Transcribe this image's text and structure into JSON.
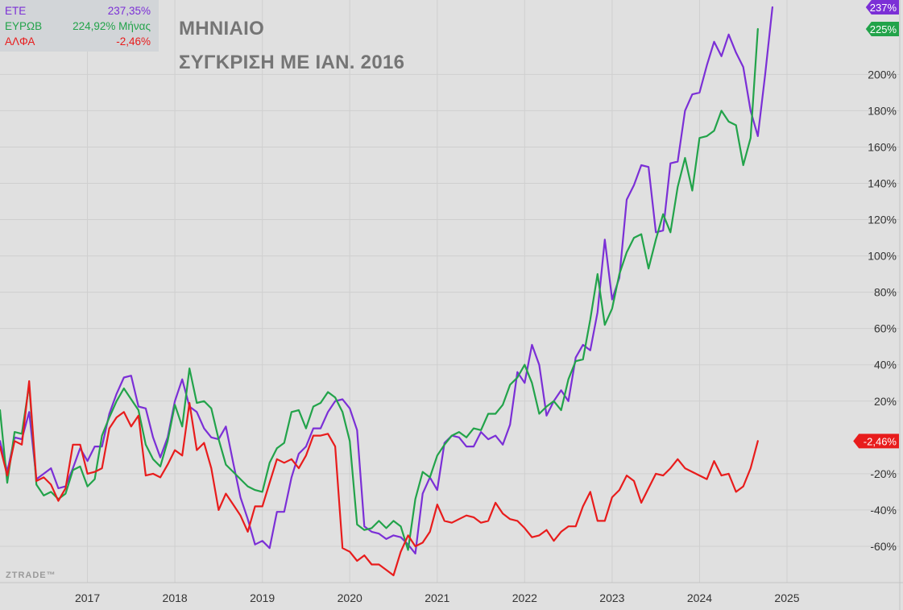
{
  "legend": {
    "items": [
      {
        "name": "ΕΤΕ",
        "value": "237,35%",
        "color": "#7b2fd6"
      },
      {
        "name": "ΕΥΡΩΒ",
        "value": "224,92% Μήνας",
        "color": "#22a34a"
      },
      {
        "name": "ΑΛΦΑ",
        "value": "-2,46%",
        "color": "#e81c1c"
      }
    ]
  },
  "title_line1": "ΜΗΝΙΑΙΟ",
  "title_line2": "ΣΥΓΚΡΙΣΗ ΜΕ ΙΑΝ. 2016",
  "watermark": "ZTRADE™",
  "chart_data": {
    "type": "line",
    "title": "ΜΗΝΙΑΙΟ ΣΥΓΚΡΙΣΗ ΜΕ ΙΑΝ. 2016",
    "x_start": "2016-01",
    "x_end": "2025-01",
    "x_axis_end": "2026-02",
    "xticks": [
      "2017",
      "2018",
      "2019",
      "2020",
      "2021",
      "2022",
      "2023",
      "2024",
      "2025"
    ],
    "yticks": [
      -60,
      -40,
      -20,
      20,
      40,
      60,
      80,
      100,
      120,
      140,
      160,
      180,
      200
    ],
    "ytick_labels": [
      "-60%",
      "-40%",
      "-20%",
      "20%",
      "40%",
      "60%",
      "80%",
      "100%",
      "120%",
      "140%",
      "160%",
      "180%",
      "200%"
    ],
    "ylim": [
      -80,
      241
    ],
    "grid": true,
    "series": [
      {
        "name": "ΕΤΕ",
        "color": "#7b2fd6",
        "badge": "237%",
        "values": [
          -2,
          -19,
          0,
          -1,
          14,
          -23,
          -20,
          -17,
          -28,
          -27,
          -17,
          -6,
          -13,
          -5,
          -5,
          13,
          24,
          33,
          34,
          17,
          16,
          0,
          -11,
          0,
          20,
          32,
          17,
          14,
          5,
          0,
          -1,
          6,
          -14,
          -33,
          -45,
          -59,
          -57,
          -61,
          -41,
          -41,
          -22,
          -9,
          -5,
          5,
          5,
          14,
          20,
          21,
          16,
          4,
          -49,
          -52,
          -53,
          -56,
          -54,
          -55,
          -59,
          -64,
          -31,
          -22,
          -29,
          -3,
          1,
          0,
          -5,
          -5,
          3,
          -1,
          1,
          -4,
          7,
          36,
          30,
          51,
          40,
          12,
          20,
          26,
          20,
          44,
          51,
          48,
          69,
          109,
          76,
          88,
          131,
          139,
          150,
          149,
          113,
          114,
          151,
          152,
          180,
          189,
          190,
          205,
          218,
          210,
          222,
          212,
          204,
          180,
          166,
          200,
          237
        ]
      },
      {
        "name": "ΕΥΡΩΒ",
        "color": "#22a34a",
        "badge": "225%",
        "values": [
          15,
          -25,
          3,
          2,
          29,
          -26,
          -32,
          -30,
          -34,
          -31,
          -18,
          -16,
          -27,
          -23,
          1,
          11,
          20,
          27,
          21,
          15,
          -4,
          -12,
          -16,
          -2,
          18,
          6,
          38,
          19,
          20,
          16,
          -1,
          -15,
          -19,
          -23,
          -27,
          -29,
          -30,
          -14,
          -6,
          -3,
          14,
          15,
          5,
          17,
          19,
          25,
          22,
          14,
          -2,
          -48,
          -51,
          -50,
          -46,
          -50,
          -46,
          -49,
          -62,
          -34,
          -19,
          -22,
          -10,
          -4,
          1,
          3,
          0,
          5,
          4,
          13,
          13,
          18,
          29,
          33,
          40,
          30,
          13,
          17,
          20,
          15,
          32,
          42,
          43,
          65,
          90,
          62,
          71,
          90,
          102,
          110,
          112,
          93,
          109,
          123,
          113,
          138,
          154,
          136,
          165,
          166,
          169,
          180,
          174,
          172,
          150,
          165,
          225
        ]
      },
      {
        "name": "ΑΛΦΑ",
        "color": "#e81c1c",
        "badge": "-2,46%",
        "values": [
          -5,
          -21,
          -2,
          -4,
          31,
          -24,
          -22,
          -26,
          -35,
          -28,
          -4,
          -4,
          -20,
          -19,
          -17,
          5,
          11,
          14,
          6,
          12,
          -21,
          -20,
          -22,
          -15,
          -7,
          -10,
          19,
          -7,
          -3,
          -17,
          -40,
          -31,
          -37,
          -43,
          -52,
          -38,
          -38,
          -25,
          -12,
          -14,
          -12,
          -17,
          -10,
          1,
          1,
          2,
          -5,
          -61,
          -63,
          -68,
          -65,
          -70,
          -70,
          -73,
          -76,
          -63,
          -54,
          -60,
          -58,
          -52,
          -37,
          -46,
          -47,
          -45,
          -43,
          -44,
          -47,
          -46,
          -36,
          -42,
          -45,
          -46,
          -50,
          -55,
          -54,
          -51,
          -57,
          -52,
          -49,
          -49,
          -38,
          -30,
          -46,
          -46,
          -33,
          -29,
          -21,
          -24,
          -36,
          -28,
          -20,
          -21,
          -17,
          -12,
          -17,
          -19,
          -21,
          -23,
          -13,
          -21,
          -20,
          -30,
          -27,
          -17,
          -2
        ]
      }
    ]
  }
}
